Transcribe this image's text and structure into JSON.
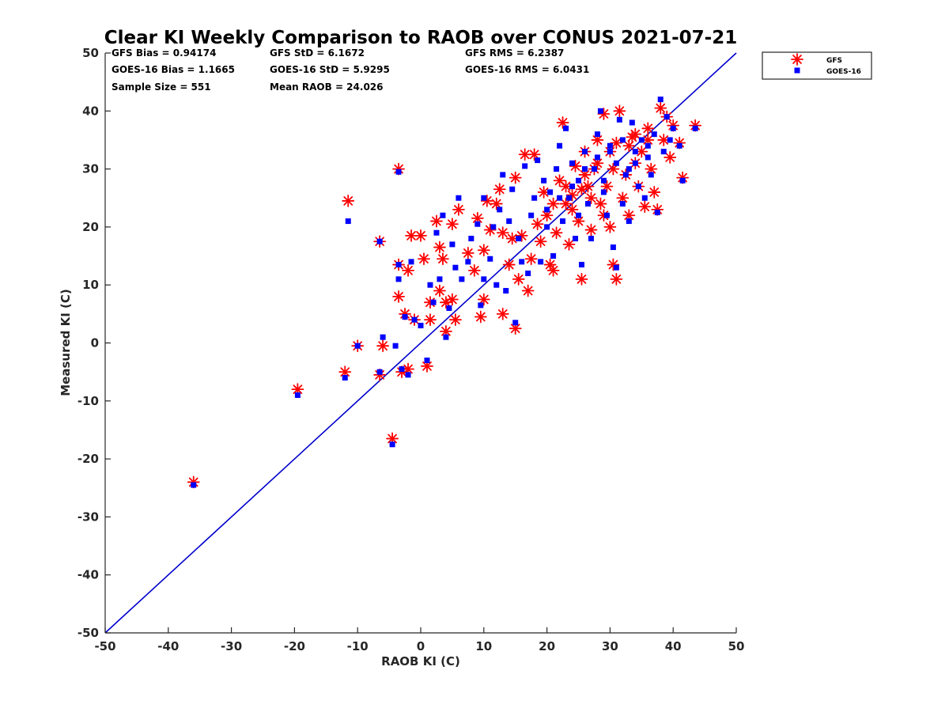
{
  "chart_data": {
    "type": "scatter",
    "title": "Clear KI Weekly Comparison to RAOB over CONUS 2021-07-21",
    "xlabel": "RAOB KI (C)",
    "ylabel": "Measured KI (C)",
    "xlim": [
      -50,
      50
    ],
    "ylim": [
      -50,
      50
    ],
    "xticks": [
      "-50",
      "-40",
      "-30",
      "-20",
      "-10",
      "0",
      "10",
      "20",
      "30",
      "40",
      "50"
    ],
    "yticks": [
      "-50",
      "-40",
      "-30",
      "-20",
      "-10",
      "0",
      "10",
      "20",
      "30",
      "40",
      "50"
    ],
    "grid": false,
    "legend_position": "outside top-right",
    "stats": [
      {
        "text": "GFS Bias = 0.94174"
      },
      {
        "text": "GFS StD = 6.1672"
      },
      {
        "text": "GFS RMS = 6.2387"
      },
      {
        "text": "GOES-16 Bias = 1.1665"
      },
      {
        "text": "GOES-16 StD = 5.9295"
      },
      {
        "text": "GOES-16 RMS = 6.0431"
      },
      {
        "text": "Sample Size = 551"
      },
      {
        "text": "Mean RAOB = 24.026"
      }
    ],
    "reference_line": {
      "name": "1:1 line",
      "x": [
        -50,
        50
      ],
      "y": [
        -50,
        50
      ],
      "color": "#0000cc"
    },
    "series": [
      {
        "name": "GFS",
        "marker": "asterisk",
        "color": "#ff0000",
        "points": [
          [
            -36,
            -24
          ],
          [
            -19.5,
            -8
          ],
          [
            -12,
            -5
          ],
          [
            -11.5,
            24.5
          ],
          [
            -10,
            -0.5
          ],
          [
            -6.5,
            -5.5
          ],
          [
            -6.5,
            17.5
          ],
          [
            -6,
            -0.5
          ],
          [
            -4.5,
            -16.5
          ],
          [
            -3.5,
            30
          ],
          [
            -3.5,
            13.5
          ],
          [
            -3.5,
            8
          ],
          [
            -3,
            -5
          ],
          [
            -2.5,
            5
          ],
          [
            -2,
            -4.5
          ],
          [
            -2,
            12.5
          ],
          [
            -1.5,
            18.5
          ],
          [
            -1,
            4
          ],
          [
            0,
            18.5
          ],
          [
            0.5,
            14.5
          ],
          [
            1,
            -4
          ],
          [
            1.5,
            4
          ],
          [
            1.5,
            7
          ],
          [
            2.5,
            21
          ],
          [
            3,
            9
          ],
          [
            3,
            16.5
          ],
          [
            3.5,
            14.5
          ],
          [
            4,
            2
          ],
          [
            4,
            7
          ],
          [
            5,
            20.5
          ],
          [
            5,
            7.5
          ],
          [
            5.5,
            4
          ],
          [
            6,
            23
          ],
          [
            7.5,
            15.5
          ],
          [
            8.5,
            12.5
          ],
          [
            9,
            21.5
          ],
          [
            9.5,
            4.5
          ],
          [
            10,
            7.5
          ],
          [
            10,
            16
          ],
          [
            10.5,
            24.5
          ],
          [
            11,
            19.5
          ],
          [
            12,
            24
          ],
          [
            12.5,
            26.5
          ],
          [
            13,
            5
          ],
          [
            13,
            19
          ],
          [
            14,
            13.5
          ],
          [
            14.5,
            18
          ],
          [
            15,
            2.5
          ],
          [
            15,
            28.5
          ],
          [
            15.5,
            11
          ],
          [
            16,
            18.5
          ],
          [
            16.5,
            32.5
          ],
          [
            17,
            9
          ],
          [
            17.5,
            14.5
          ],
          [
            18,
            32.5
          ],
          [
            18.5,
            20.5
          ],
          [
            19,
            17.5
          ],
          [
            19.5,
            26
          ],
          [
            20,
            22
          ],
          [
            20.5,
            13.5
          ],
          [
            21,
            12.5
          ],
          [
            21.5,
            19
          ],
          [
            22,
            28
          ],
          [
            22.5,
            38
          ],
          [
            23,
            24
          ],
          [
            23.5,
            17
          ],
          [
            24,
            25.5
          ],
          [
            24.5,
            30.5
          ],
          [
            25,
            21
          ],
          [
            25.5,
            11
          ],
          [
            25.5,
            26.5
          ],
          [
            26,
            33
          ],
          [
            26.5,
            27
          ],
          [
            27,
            19.5
          ],
          [
            27.5,
            30
          ],
          [
            28,
            35
          ],
          [
            28.5,
            24
          ],
          [
            29,
            22
          ],
          [
            29,
            39.5
          ],
          [
            29.5,
            27
          ],
          [
            30,
            20
          ],
          [
            30.5,
            13.5
          ],
          [
            30.5,
            30
          ],
          [
            31,
            11
          ],
          [
            31,
            34.5
          ],
          [
            31.5,
            40
          ],
          [
            32,
            25
          ],
          [
            32.5,
            29
          ],
          [
            33,
            22
          ],
          [
            33.5,
            35.5
          ],
          [
            34,
            31
          ],
          [
            34.5,
            27
          ],
          [
            35,
            33
          ],
          [
            35.5,
            23.5
          ],
          [
            36,
            37
          ],
          [
            36.5,
            30
          ],
          [
            37,
            26
          ],
          [
            37.5,
            23
          ],
          [
            38,
            40.5
          ],
          [
            38.5,
            35
          ],
          [
            39,
            39
          ],
          [
            39.5,
            32
          ],
          [
            40,
            37.5
          ],
          [
            41,
            34.5
          ],
          [
            41.5,
            28.5
          ],
          [
            43.5,
            37.5
          ],
          [
            21,
            24
          ],
          [
            23,
            27
          ],
          [
            26,
            29
          ],
          [
            28,
            31
          ],
          [
            30,
            33
          ],
          [
            33,
            34
          ],
          [
            34,
            36
          ],
          [
            36,
            35
          ],
          [
            24,
            23
          ],
          [
            27,
            25
          ]
        ]
      },
      {
        "name": "GOES-16",
        "marker": "square",
        "color": "#0000ff",
        "points": [
          [
            -36,
            -24.5
          ],
          [
            -19.5,
            -9
          ],
          [
            -12,
            -6
          ],
          [
            -11.5,
            21
          ],
          [
            -10,
            -0.5
          ],
          [
            -6.5,
            -5
          ],
          [
            -6.5,
            17.5
          ],
          [
            -6,
            1
          ],
          [
            -4.5,
            -17.5
          ],
          [
            -4,
            -0.5
          ],
          [
            -3.5,
            29.5
          ],
          [
            -3.5,
            13.5
          ],
          [
            -3.5,
            11
          ],
          [
            -3,
            -4.5
          ],
          [
            -2.5,
            4.5
          ],
          [
            -2,
            -5.5
          ],
          [
            -1.5,
            14
          ],
          [
            -1,
            4
          ],
          [
            0,
            3
          ],
          [
            1,
            -3
          ],
          [
            1.5,
            10
          ],
          [
            2,
            7
          ],
          [
            2.5,
            19
          ],
          [
            3,
            11
          ],
          [
            3.5,
            22
          ],
          [
            4,
            1
          ],
          [
            4.5,
            6
          ],
          [
            5,
            17
          ],
          [
            5.5,
            13
          ],
          [
            6,
            25
          ],
          [
            6.5,
            11
          ],
          [
            7.5,
            14
          ],
          [
            8,
            18
          ],
          [
            9,
            20.5
          ],
          [
            9.5,
            6.5
          ],
          [
            10,
            11
          ],
          [
            10,
            25
          ],
          [
            11,
            14.5
          ],
          [
            11.5,
            20
          ],
          [
            12,
            10
          ],
          [
            12.5,
            23
          ],
          [
            13,
            29
          ],
          [
            13.5,
            9
          ],
          [
            14,
            21
          ],
          [
            14.5,
            26.5
          ],
          [
            15,
            3.5
          ],
          [
            15.5,
            18
          ],
          [
            16,
            14
          ],
          [
            16.5,
            30.5
          ],
          [
            17,
            12
          ],
          [
            17.5,
            22
          ],
          [
            18,
            25
          ],
          [
            18.5,
            31.5
          ],
          [
            19,
            14
          ],
          [
            19.5,
            28
          ],
          [
            20,
            20
          ],
          [
            20.5,
            26
          ],
          [
            21,
            15
          ],
          [
            21.5,
            30
          ],
          [
            22,
            34
          ],
          [
            22.5,
            21
          ],
          [
            23,
            37
          ],
          [
            23.5,
            25
          ],
          [
            24,
            31
          ],
          [
            24.5,
            18
          ],
          [
            25,
            28
          ],
          [
            25.5,
            13.5
          ],
          [
            26,
            33
          ],
          [
            26.5,
            24
          ],
          [
            27,
            18
          ],
          [
            27.5,
            30
          ],
          [
            28,
            36
          ],
          [
            28.5,
            40
          ],
          [
            29,
            26
          ],
          [
            29.5,
            22
          ],
          [
            30,
            33
          ],
          [
            30.5,
            16.5
          ],
          [
            31,
            13
          ],
          [
            31.5,
            38.5
          ],
          [
            32,
            24
          ],
          [
            32.5,
            29
          ],
          [
            33,
            21
          ],
          [
            33.5,
            38
          ],
          [
            34,
            31
          ],
          [
            34.5,
            27
          ],
          [
            35,
            35
          ],
          [
            35.5,
            25
          ],
          [
            36,
            32
          ],
          [
            36.5,
            29
          ],
          [
            37,
            36
          ],
          [
            37.5,
            22.5
          ],
          [
            38,
            42
          ],
          [
            38.5,
            33
          ],
          [
            39,
            39
          ],
          [
            39.5,
            35
          ],
          [
            40,
            37
          ],
          [
            41,
            34
          ],
          [
            41.5,
            28
          ],
          [
            43.5,
            37
          ],
          [
            20,
            23
          ],
          [
            22,
            25
          ],
          [
            24,
            27
          ],
          [
            26,
            30
          ],
          [
            28,
            32
          ],
          [
            30,
            34
          ],
          [
            32,
            35
          ],
          [
            34,
            33
          ],
          [
            36,
            34
          ],
          [
            25,
            22
          ],
          [
            29,
            28
          ],
          [
            31,
            31
          ],
          [
            33,
            30
          ]
        ]
      }
    ]
  }
}
